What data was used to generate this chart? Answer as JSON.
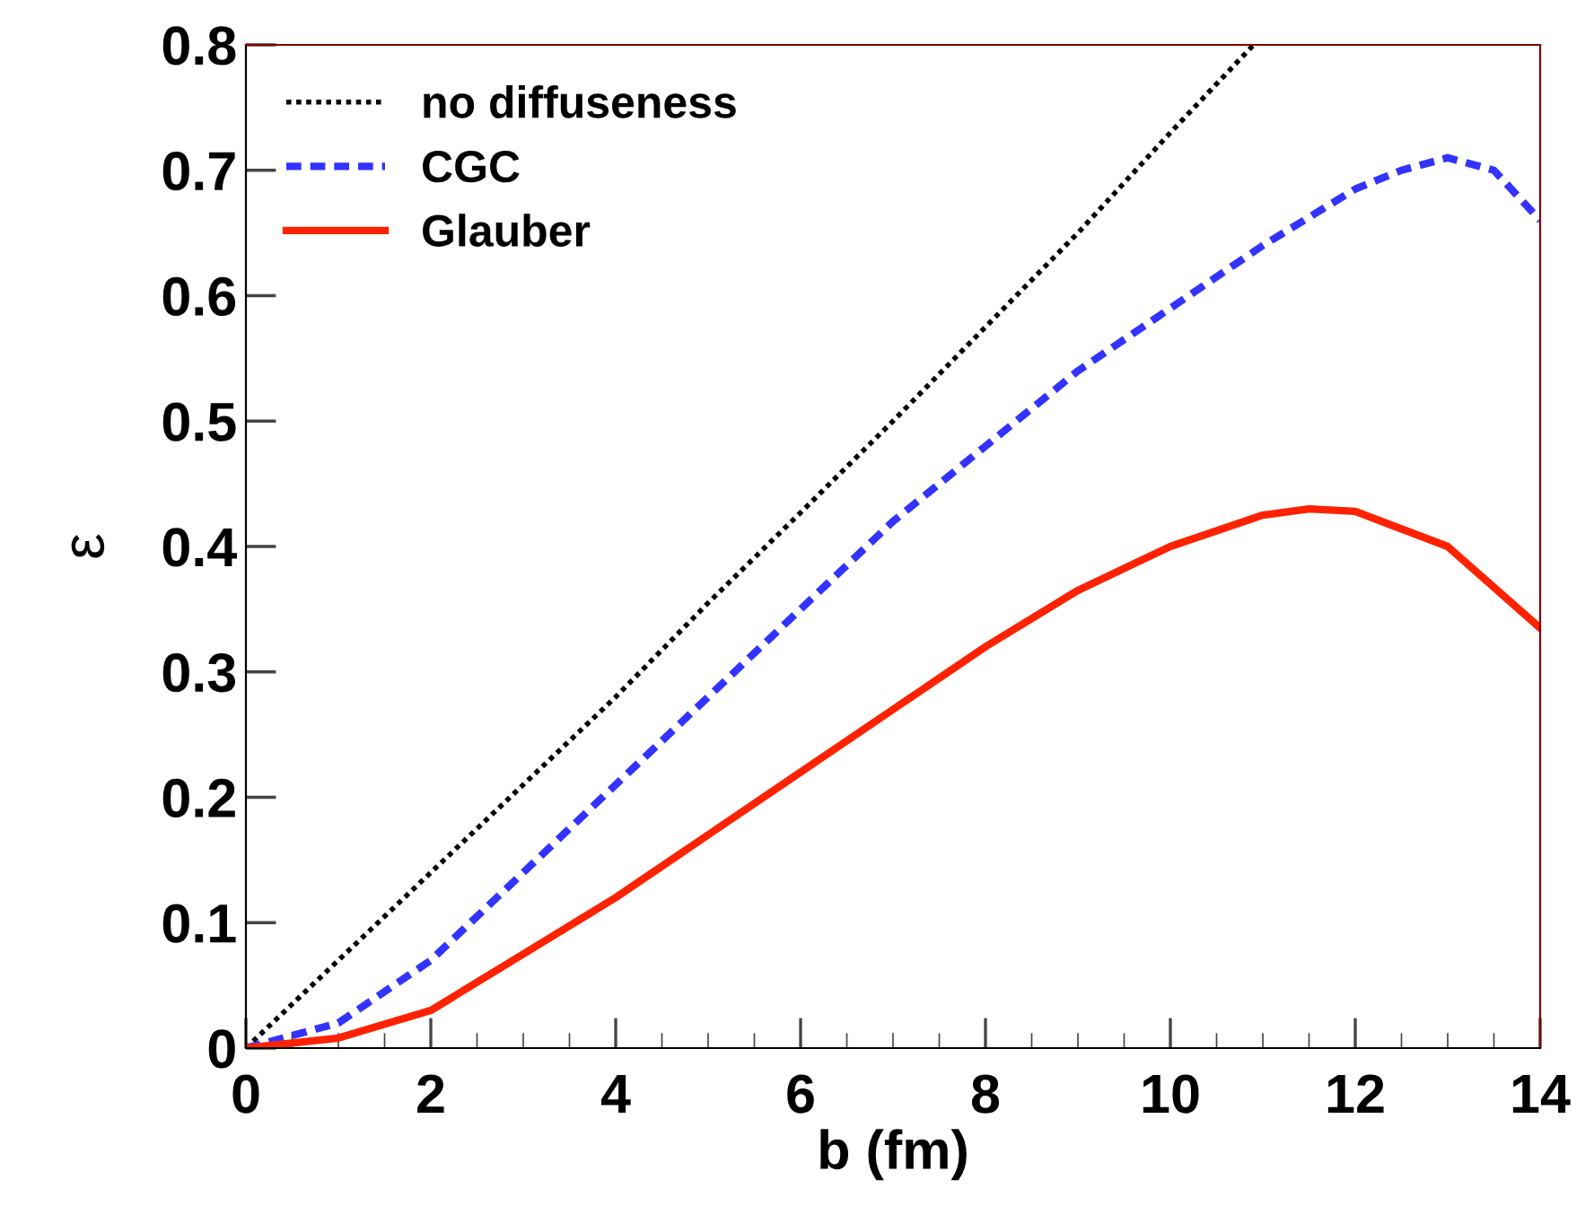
{
  "chart_data": {
    "type": "line",
    "xlabel": "b (fm)",
    "ylabel": "ε",
    "xlim": [
      0,
      14
    ],
    "ylim": [
      0,
      0.8
    ],
    "xticks": [
      0,
      2,
      4,
      6,
      8,
      10,
      12,
      14
    ],
    "yticks": [
      {
        "value": 0,
        "label": "0"
      },
      0.1,
      0.2,
      0.3,
      0.4,
      0.5,
      0.6,
      0.7,
      0.8
    ],
    "legend": "top left",
    "grid": false,
    "series": [
      {
        "name": "no diffuseness",
        "color": "#000000",
        "line_style": "dotted",
        "x": [
          0,
          1,
          2,
          3,
          4,
          5,
          6,
          7,
          8,
          9,
          10,
          10.9
        ],
        "values": [
          0,
          0.07,
          0.14,
          0.21,
          0.28,
          0.355,
          0.427,
          0.5,
          0.575,
          0.65,
          0.73,
          0.8
        ]
      },
      {
        "name": "CGC",
        "color": "#3333ff",
        "line_style": "dashed",
        "x": [
          0,
          1,
          2,
          3,
          4,
          5,
          6,
          7,
          8,
          9,
          10,
          11,
          12,
          12.5,
          13,
          13.5,
          14
        ],
        "values": [
          0,
          0.02,
          0.07,
          0.14,
          0.21,
          0.28,
          0.35,
          0.42,
          0.48,
          0.54,
          0.59,
          0.64,
          0.685,
          0.7,
          0.71,
          0.7,
          0.66
        ]
      },
      {
        "name": "Glauber",
        "color": "#ff2200",
        "line_style": "solid",
        "x": [
          0,
          1,
          2,
          3,
          4,
          5,
          6,
          7,
          8,
          9,
          10,
          11,
          11.5,
          12,
          13,
          14
        ],
        "values": [
          0,
          0.008,
          0.03,
          0.075,
          0.12,
          0.17,
          0.22,
          0.27,
          0.32,
          0.365,
          0.4,
          0.425,
          0.43,
          0.428,
          0.4,
          0.335
        ]
      }
    ]
  }
}
